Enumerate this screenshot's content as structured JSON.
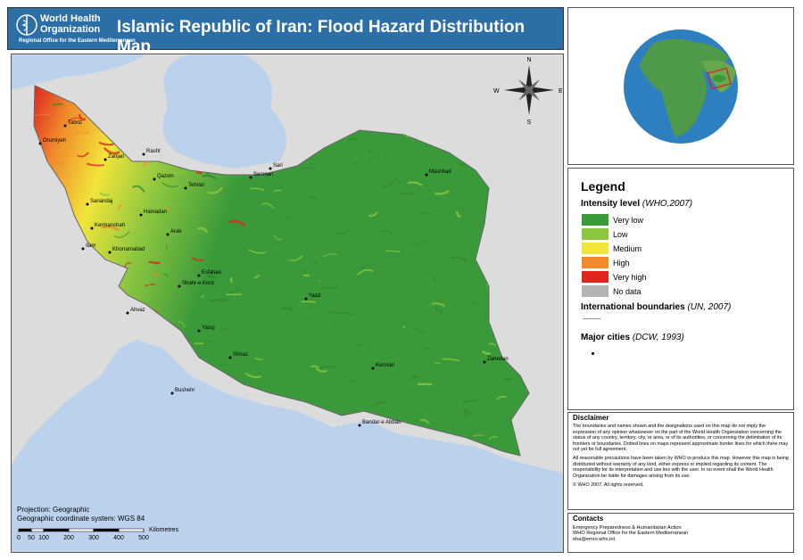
{
  "header": {
    "org_name": [
      "World Health",
      "Organization"
    ],
    "org_subtitle": "Regional Office for the Eastern Mediterranean",
    "title": "Islamic Republic of Iran: Flood Hazard Distribution Map"
  },
  "compass": {
    "north": "N",
    "south": "S",
    "east": "E",
    "west": "W"
  },
  "cities": [
    "Tabriz",
    "Orumiyeh",
    "Zanjan",
    "Rasht",
    "Sari",
    "Qazvin",
    "Tehran",
    "Semnan",
    "Mashhad",
    "Sanandaj",
    "Hamadan",
    "Kermanshah",
    "Arak",
    "Ilam",
    "Khorramabad",
    "Esfahan",
    "Shahr-e Kord",
    "Ahvaz",
    "Yasuj",
    "Yazd",
    "Shiraz",
    "Bushehr",
    "Kerman",
    "Zahedan",
    "Bandar-e Abbas"
  ],
  "map_info": {
    "projection": "Projection: Geographic",
    "coordinate_system": "Geographic coordinate system: WGS 84",
    "scale_unit": "Kilometres",
    "scale_ticks": [
      0,
      50,
      100,
      200,
      300,
      400,
      500
    ]
  },
  "legend": {
    "title": "Legend",
    "intensity": {
      "label": "Intensity level",
      "source": "(WHO,2007)",
      "items": [
        {
          "label": "Very low",
          "color": "#3a9a3a"
        },
        {
          "label": "Low",
          "color": "#8cc63f"
        },
        {
          "label": "Medium",
          "color": "#f2e53a"
        },
        {
          "label": "High",
          "color": "#f08a2c"
        },
        {
          "label": "Very high",
          "color": "#e0251f"
        },
        {
          "label": "No data",
          "color": "#b3b3b3"
        }
      ]
    },
    "boundaries": {
      "label": "International boundaries",
      "source": "(UN, 2007)"
    },
    "cities": {
      "label": "Major cities",
      "source": "(DCW, 1993)"
    }
  },
  "disclaimer": {
    "title": "Disclaimer",
    "paragraphs": [
      "The boundaries and names shown and the designations used on this map do not imply the expression of any opinion whatsoever on the part of the World Health Organization concerning the status of any country, territory, city, or area, or of its authorities, or concerning the delimitation of its frontiers or boundaries. Dotted lines on maps represent approximate border lines for which there may not yet be full agreement.",
      "All reasonable precautions have been taken by WHO to produce this map. However this map is being distributed without warranty of any kind, either express or implied regarding its content. The responsibility for its interpretation and use lies with the user. In no event shall the World Health Organization be liable for damages arising from its use.",
      "© WHO 2007. All rights reserved."
    ]
  },
  "contacts": {
    "title": "Contacts",
    "lines": [
      "Emergency Preparedness & Humanitarian Action",
      "WHO Regional Office for the Eastern Mediterranean",
      "eha@emro.who.int"
    ]
  }
}
